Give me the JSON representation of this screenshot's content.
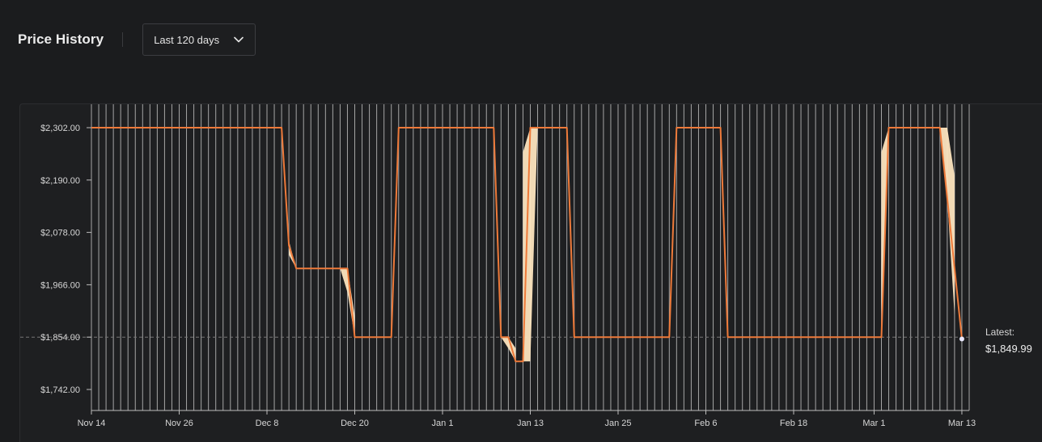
{
  "header": {
    "title": "Price History",
    "range_label": "Last 120 days"
  },
  "colors": {
    "line": "#ee7a3a",
    "band": "#fde5bf",
    "grid": "#bdbdbd",
    "reference": "#777777",
    "text": "#d6d6d6"
  },
  "chart_data": {
    "type": "line",
    "title": "",
    "xlabel": "",
    "ylabel": "",
    "x_start": "Nov 14",
    "days": 120,
    "x_tick_labels": [
      "Nov 14",
      "Nov 26",
      "Dec 8",
      "Dec 20",
      "Jan 1",
      "Jan 13",
      "Jan 25",
      "Feb 6",
      "Feb 18",
      "Mar 1",
      "Mar 13"
    ],
    "y_tick_labels": [
      "$2,302.00",
      "$2,190.00",
      "$2,078.00",
      "$1,966.00",
      "$1,854.00",
      "$1,742.00"
    ],
    "y_ticks": [
      2302,
      2190,
      2078,
      1966,
      1854,
      1742
    ],
    "ylim": [
      1700,
      2350
    ],
    "reference_line": 1854,
    "grid": "vertical-daily",
    "series": [
      {
        "x": [
          "Nov 14",
          "Dec 10",
          "Dec 11",
          "Dec 12",
          "Dec 19",
          "Dec 20",
          "Dec 25",
          "Dec 26",
          "Jan 8",
          "Jan 9",
          "Jan 10",
          "Jan 11",
          "Jan 12",
          "Jan 13",
          "Jan 18",
          "Jan 19",
          "Feb 1",
          "Feb 2",
          "Feb 8",
          "Feb 9",
          "Mar 2",
          "Mar 3",
          "Mar 10",
          "Mar 13"
        ],
        "y": [
          2302,
          2302,
          2050,
          2001,
          2001,
          1854,
          1854,
          2302,
          2302,
          1854,
          1854,
          1802,
          1802,
          2302,
          2302,
          1854,
          1854,
          2302,
          2302,
          1854,
          1854,
          2302,
          2302,
          1849.99
        ]
      }
    ],
    "bands": [
      {
        "x": [
          "Dec 11",
          "Dec 12"
        ],
        "y_low": [
          2030,
          2001
        ],
        "y_high": [
          2060,
          2001
        ]
      },
      {
        "x": [
          "Dec 18",
          "Dec 19",
          "Dec 20"
        ],
        "y_low": [
          2001,
          1950,
          1854
        ],
        "y_high": [
          2001,
          2001,
          1900
        ]
      },
      {
        "x": [
          "Jan 9",
          "Jan 10",
          "Jan 11"
        ],
        "y_low": [
          1854,
          1830,
          1802
        ],
        "y_high": [
          1854,
          1854,
          1830
        ]
      },
      {
        "x": [
          "Jan 12",
          "Jan 13",
          "Jan 14"
        ],
        "y_low": [
          1802,
          1802,
          2302
        ],
        "y_high": [
          2250,
          2302,
          2302
        ]
      },
      {
        "x": [
          "Mar 2",
          "Mar 3"
        ],
        "y_low": [
          1854,
          2302
        ],
        "y_high": [
          2250,
          2302
        ]
      },
      {
        "x": [
          "Mar 10",
          "Mar 11",
          "Mar 12"
        ],
        "y_low": [
          2302,
          2150,
          1900
        ],
        "y_high": [
          2302,
          2302,
          2200
        ]
      }
    ],
    "latest": {
      "label": "Latest:",
      "value": "$1,849.99"
    }
  }
}
